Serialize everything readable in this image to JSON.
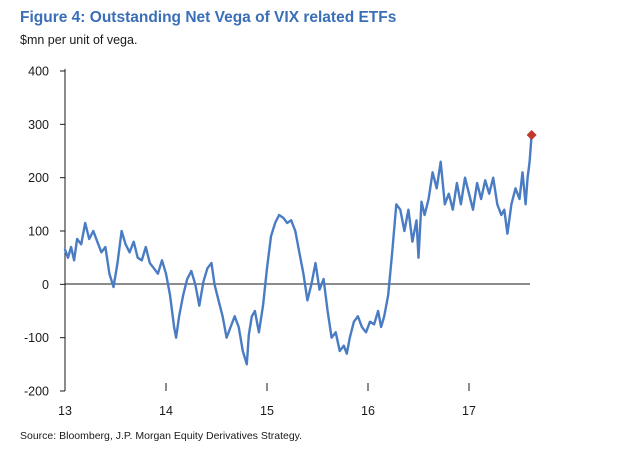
{
  "chart_data": {
    "type": "line",
    "title": "Figure 4: Outstanding Net Vega of VIX related ETFs",
    "subtitle": "$mn per unit of vega.",
    "source": "Source: Bloomberg, J.P. Morgan Equity Derivatives Strategy.",
    "xlabel": "",
    "ylabel": "",
    "xlim": [
      2013.0,
      2017.85
    ],
    "ylim": [
      -200,
      400
    ],
    "yticks": [
      400,
      300,
      200,
      100,
      0,
      -100,
      -200
    ],
    "ytick_labels": [
      "400",
      "300",
      "200",
      "100",
      "0",
      "-100",
      "-200"
    ],
    "xticks": [
      2013,
      2014,
      2015,
      2016,
      2017
    ],
    "xtick_labels": [
      "13",
      "14",
      "15",
      "16",
      "17"
    ],
    "grid": false,
    "colors": {
      "line": "#4a7cc4",
      "marker": "#c0392b",
      "title": "#3a6fb7"
    },
    "series": [
      {
        "name": "Outstanding Net Vega",
        "x": [
          2013.0,
          2013.03,
          2013.06,
          2013.09,
          2013.12,
          2013.16,
          2013.2,
          2013.24,
          2013.28,
          2013.32,
          2013.36,
          2013.4,
          2013.44,
          2013.48,
          2013.52,
          2013.56,
          2013.6,
          2013.64,
          2013.68,
          2013.72,
          2013.76,
          2013.8,
          2013.84,
          2013.88,
          2013.92,
          2013.96,
          2014.0,
          2014.04,
          2014.08,
          2014.1,
          2014.13,
          2014.17,
          2014.21,
          2014.25,
          2014.29,
          2014.33,
          2014.37,
          2014.41,
          2014.45,
          2014.48,
          2014.52,
          2014.56,
          2014.6,
          2014.64,
          2014.68,
          2014.72,
          2014.76,
          2014.8,
          2014.82,
          2014.85,
          2014.88,
          2014.92,
          2014.96,
          2015.0,
          2015.04,
          2015.08,
          2015.12,
          2015.16,
          2015.2,
          2015.24,
          2015.28,
          2015.32,
          2015.36,
          2015.4,
          2015.44,
          2015.48,
          2015.52,
          2015.56,
          2015.6,
          2015.64,
          2015.68,
          2015.72,
          2015.76,
          2015.79,
          2015.82,
          2015.86,
          2015.9,
          2015.94,
          2015.98,
          2016.02,
          2016.06,
          2016.1,
          2016.13,
          2016.16,
          2016.2,
          2016.24,
          2016.28,
          2016.32,
          2016.36,
          2016.4,
          2016.44,
          2016.48,
          2016.5,
          2016.53,
          2016.56,
          2016.6,
          2016.64,
          2016.68,
          2016.72,
          2016.76,
          2016.8,
          2016.84,
          2016.88,
          2016.92,
          2016.96,
          2017.0,
          2017.04,
          2017.08,
          2017.12,
          2017.16,
          2017.2,
          2017.24,
          2017.28,
          2017.32,
          2017.35,
          2017.38,
          2017.42,
          2017.46,
          2017.5,
          2017.53,
          2017.56,
          2017.58,
          2017.6,
          2017.62
        ],
        "y": [
          65,
          50,
          70,
          45,
          85,
          75,
          115,
          85,
          100,
          80,
          60,
          70,
          20,
          -5,
          40,
          100,
          75,
          60,
          80,
          50,
          45,
          70,
          40,
          30,
          20,
          45,
          20,
          -20,
          -80,
          -100,
          -60,
          -20,
          10,
          25,
          0,
          -40,
          5,
          30,
          40,
          0,
          -30,
          -60,
          -100,
          -80,
          -60,
          -80,
          -125,
          -150,
          -95,
          -60,
          -50,
          -90,
          -40,
          30,
          90,
          115,
          130,
          125,
          115,
          120,
          100,
          60,
          20,
          -30,
          0,
          40,
          -10,
          10,
          -50,
          -100,
          -90,
          -125,
          -115,
          -130,
          -100,
          -70,
          -60,
          -80,
          -90,
          -70,
          -75,
          -50,
          -80,
          -60,
          -20,
          60,
          150,
          140,
          100,
          140,
          80,
          120,
          50,
          155,
          130,
          160,
          210,
          180,
          230,
          150,
          170,
          140,
          190,
          150,
          200,
          170,
          140,
          190,
          160,
          195,
          170,
          200,
          150,
          130,
          140,
          95,
          150,
          180,
          160,
          210,
          150,
          200,
          230,
          280
        ]
      }
    ],
    "annotations": [
      {
        "type": "marker",
        "shape": "diamond",
        "x": 2017.62,
        "y": 280
      }
    ]
  }
}
